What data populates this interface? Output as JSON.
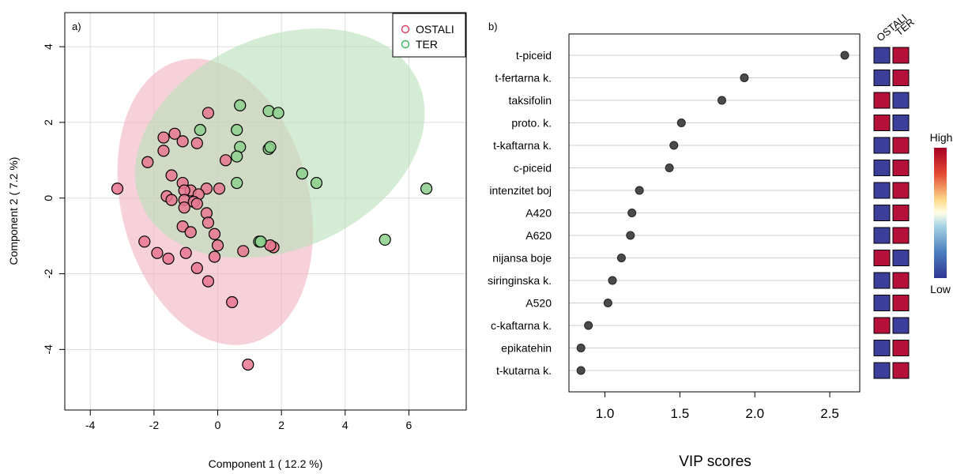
{
  "chart_data": [
    {
      "type": "scatter",
      "panel_label": "a)",
      "xlabel": "Component 1 ( 12.2 %)",
      "ylabel": "Component 2 ( 7.2 %)",
      "xlim": [
        -4.8,
        7.8
      ],
      "ylim": [
        -5.6,
        4.9
      ],
      "xticks": [
        -4,
        -2,
        0,
        2,
        4,
        6
      ],
      "yticks": [
        -4,
        -2,
        0,
        2,
        4
      ],
      "grid": true,
      "legend_position": "top-right",
      "colors": {
        "OSTALI": "#e8758f",
        "TER": "#8ccf8c",
        "OSTALI_ellipse": "#f2b3c2",
        "TER_ellipse": "#b8e0b8"
      },
      "series": [
        {
          "name": "OSTALI",
          "ellipse": {
            "cx": -0.08,
            "cy": -0.1,
            "rx": 2.95,
            "ry": 3.85,
            "angle_deg": -14
          },
          "points": [
            [
              -0.3,
              2.25
            ],
            [
              -1.7,
              1.6
            ],
            [
              -1.35,
              1.7
            ],
            [
              -1.1,
              1.5
            ],
            [
              -1.7,
              1.25
            ],
            [
              -0.65,
              1.45
            ],
            [
              -2.2,
              0.95
            ],
            [
              0.25,
              1.0
            ],
            [
              -1.45,
              0.6
            ],
            [
              -3.15,
              0.25
            ],
            [
              -1.1,
              0.4
            ],
            [
              -0.85,
              0.2
            ],
            [
              -0.35,
              0.25
            ],
            [
              -1.05,
              0.2
            ],
            [
              0.05,
              0.25
            ],
            [
              -1.6,
              0.05
            ],
            [
              -0.6,
              0.1
            ],
            [
              -1.45,
              -0.05
            ],
            [
              -1.05,
              -0.05
            ],
            [
              -0.75,
              -0.1
            ],
            [
              -0.65,
              -0.15
            ],
            [
              -1.05,
              -0.25
            ],
            [
              -0.35,
              -0.4
            ],
            [
              -0.3,
              -0.65
            ],
            [
              -1.1,
              -0.75
            ],
            [
              -0.85,
              -0.9
            ],
            [
              -0.1,
              -0.95
            ],
            [
              0.0,
              -1.25
            ],
            [
              -2.3,
              -1.15
            ],
            [
              -1.9,
              -1.45
            ],
            [
              -1.0,
              -1.45
            ],
            [
              -1.55,
              -1.6
            ],
            [
              -0.1,
              -1.55
            ],
            [
              0.8,
              -1.4
            ],
            [
              1.75,
              -1.3
            ],
            [
              1.65,
              -1.25
            ],
            [
              -0.65,
              -1.85
            ],
            [
              -0.3,
              -2.2
            ],
            [
              0.45,
              -2.75
            ],
            [
              0.95,
              -4.4
            ]
          ]
        },
        {
          "name": "TER",
          "ellipse": {
            "cx": 1.95,
            "cy": 1.45,
            "rx": 4.75,
            "ry": 2.8,
            "angle_deg": -24
          },
          "points": [
            [
              0.7,
              2.45
            ],
            [
              1.6,
              2.3
            ],
            [
              1.9,
              2.25
            ],
            [
              -0.55,
              1.8
            ],
            [
              0.6,
              1.8
            ],
            [
              0.7,
              1.35
            ],
            [
              1.6,
              1.3
            ],
            [
              1.65,
              1.35
            ],
            [
              0.6,
              1.1
            ],
            [
              2.65,
              0.65
            ],
            [
              0.6,
              0.4
            ],
            [
              3.1,
              0.4
            ],
            [
              6.55,
              0.25
            ],
            [
              5.25,
              -1.1
            ],
            [
              1.3,
              -1.15
            ],
            [
              1.35,
              -1.15
            ]
          ]
        }
      ]
    },
    {
      "type": "scatter",
      "panel_label": "b)",
      "xlabel": "VIP scores",
      "ylabel": "",
      "xlim": [
        0.76,
        2.7
      ],
      "xticks": [
        "1.0",
        "1.5",
        "2.0",
        "2.5"
      ],
      "grid": true,
      "categories": [
        "t-piceid",
        "t-fertarna k.",
        "taksifolin",
        "proto. k.",
        "t-kaftarna k.",
        "c-piceid",
        "intenzitet boj",
        "A420",
        "A620",
        "nijansa boje",
        "siringinska k.",
        "A520",
        "c-kaftarna k.",
        "epikatehin",
        "t-kutarna k."
      ],
      "values": [
        2.6,
        1.93,
        1.78,
        1.51,
        1.46,
        1.43,
        1.23,
        1.18,
        1.17,
        1.11,
        1.05,
        1.02,
        0.89,
        0.84,
        0.84
      ],
      "heatmap": {
        "columns": [
          "OSTALI",
          "TER"
        ],
        "cells": [
          [
            "Low",
            "High"
          ],
          [
            "Low",
            "High"
          ],
          [
            "High",
            "Low"
          ],
          [
            "High",
            "Low"
          ],
          [
            "Low",
            "High"
          ],
          [
            "Low",
            "High"
          ],
          [
            "Low",
            "High"
          ],
          [
            "Low",
            "High"
          ],
          [
            "Low",
            "High"
          ],
          [
            "High",
            "Low"
          ],
          [
            "Low",
            "High"
          ],
          [
            "Low",
            "High"
          ],
          [
            "High",
            "Low"
          ],
          [
            "Low",
            "High"
          ],
          [
            "Low",
            "High"
          ]
        ],
        "colors": {
          "High": "#b5103a",
          "Low": "#3b3f9a"
        }
      },
      "colorbar": {
        "high_label": "High",
        "low_label": "Low"
      }
    }
  ]
}
